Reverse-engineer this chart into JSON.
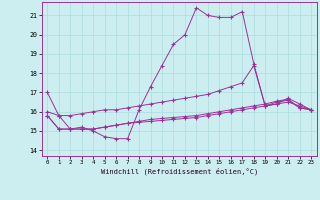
{
  "xlabel": "Windchill (Refroidissement éolien,°C)",
  "bg_color": "#cceef0",
  "line_color": "#993399",
  "grid_color": "#aadddd",
  "xlim": [
    -0.5,
    23.5
  ],
  "ylim": [
    13.7,
    21.7
  ],
  "yticks": [
    14,
    15,
    16,
    17,
    18,
    19,
    20,
    21
  ],
  "xticks": [
    0,
    1,
    2,
    3,
    4,
    5,
    6,
    7,
    8,
    9,
    10,
    11,
    12,
    13,
    14,
    15,
    16,
    17,
    18,
    19,
    20,
    21,
    22,
    23
  ],
  "line1_x": [
    0,
    1,
    2,
    3,
    4,
    5,
    6,
    7,
    8,
    9,
    10,
    11,
    12,
    13,
    14,
    15,
    16,
    17,
    18,
    19,
    20,
    21,
    22,
    23
  ],
  "line1_y": [
    17.0,
    15.8,
    15.1,
    15.2,
    15.0,
    14.7,
    14.6,
    14.6,
    16.1,
    17.3,
    18.4,
    19.5,
    20.0,
    21.4,
    21.0,
    20.9,
    20.9,
    21.2,
    18.5,
    16.3,
    16.4,
    16.7,
    16.4,
    16.1
  ],
  "line2_x": [
    0,
    1,
    2,
    3,
    4,
    5,
    6,
    7,
    8,
    9,
    10,
    11,
    12,
    13,
    14,
    15,
    16,
    17,
    18,
    19,
    20,
    21,
    22,
    23
  ],
  "line2_y": [
    16.0,
    15.8,
    15.8,
    15.9,
    16.0,
    16.1,
    16.1,
    16.2,
    16.3,
    16.4,
    16.5,
    16.6,
    16.7,
    16.8,
    16.9,
    17.1,
    17.3,
    17.5,
    18.4,
    16.3,
    16.4,
    16.5,
    16.3,
    16.1
  ],
  "line3_x": [
    0,
    1,
    2,
    3,
    4,
    5,
    6,
    7,
    8,
    9,
    10,
    11,
    12,
    13,
    14,
    15,
    16,
    17,
    18,
    19,
    20,
    21,
    22,
    23
  ],
  "line3_y": [
    15.8,
    15.1,
    15.1,
    15.1,
    15.1,
    15.2,
    15.3,
    15.4,
    15.45,
    15.5,
    15.55,
    15.6,
    15.65,
    15.7,
    15.8,
    15.9,
    16.0,
    16.1,
    16.2,
    16.3,
    16.5,
    16.6,
    16.2,
    16.1
  ],
  "line4_x": [
    0,
    1,
    2,
    3,
    4,
    5,
    6,
    7,
    8,
    9,
    10,
    11,
    12,
    13,
    14,
    15,
    16,
    17,
    18,
    19,
    20,
    21,
    22,
    23
  ],
  "line4_y": [
    15.8,
    15.1,
    15.1,
    15.1,
    15.1,
    15.2,
    15.3,
    15.4,
    15.5,
    15.6,
    15.65,
    15.7,
    15.75,
    15.8,
    15.9,
    16.0,
    16.1,
    16.2,
    16.3,
    16.4,
    16.55,
    16.65,
    16.2,
    16.1
  ]
}
